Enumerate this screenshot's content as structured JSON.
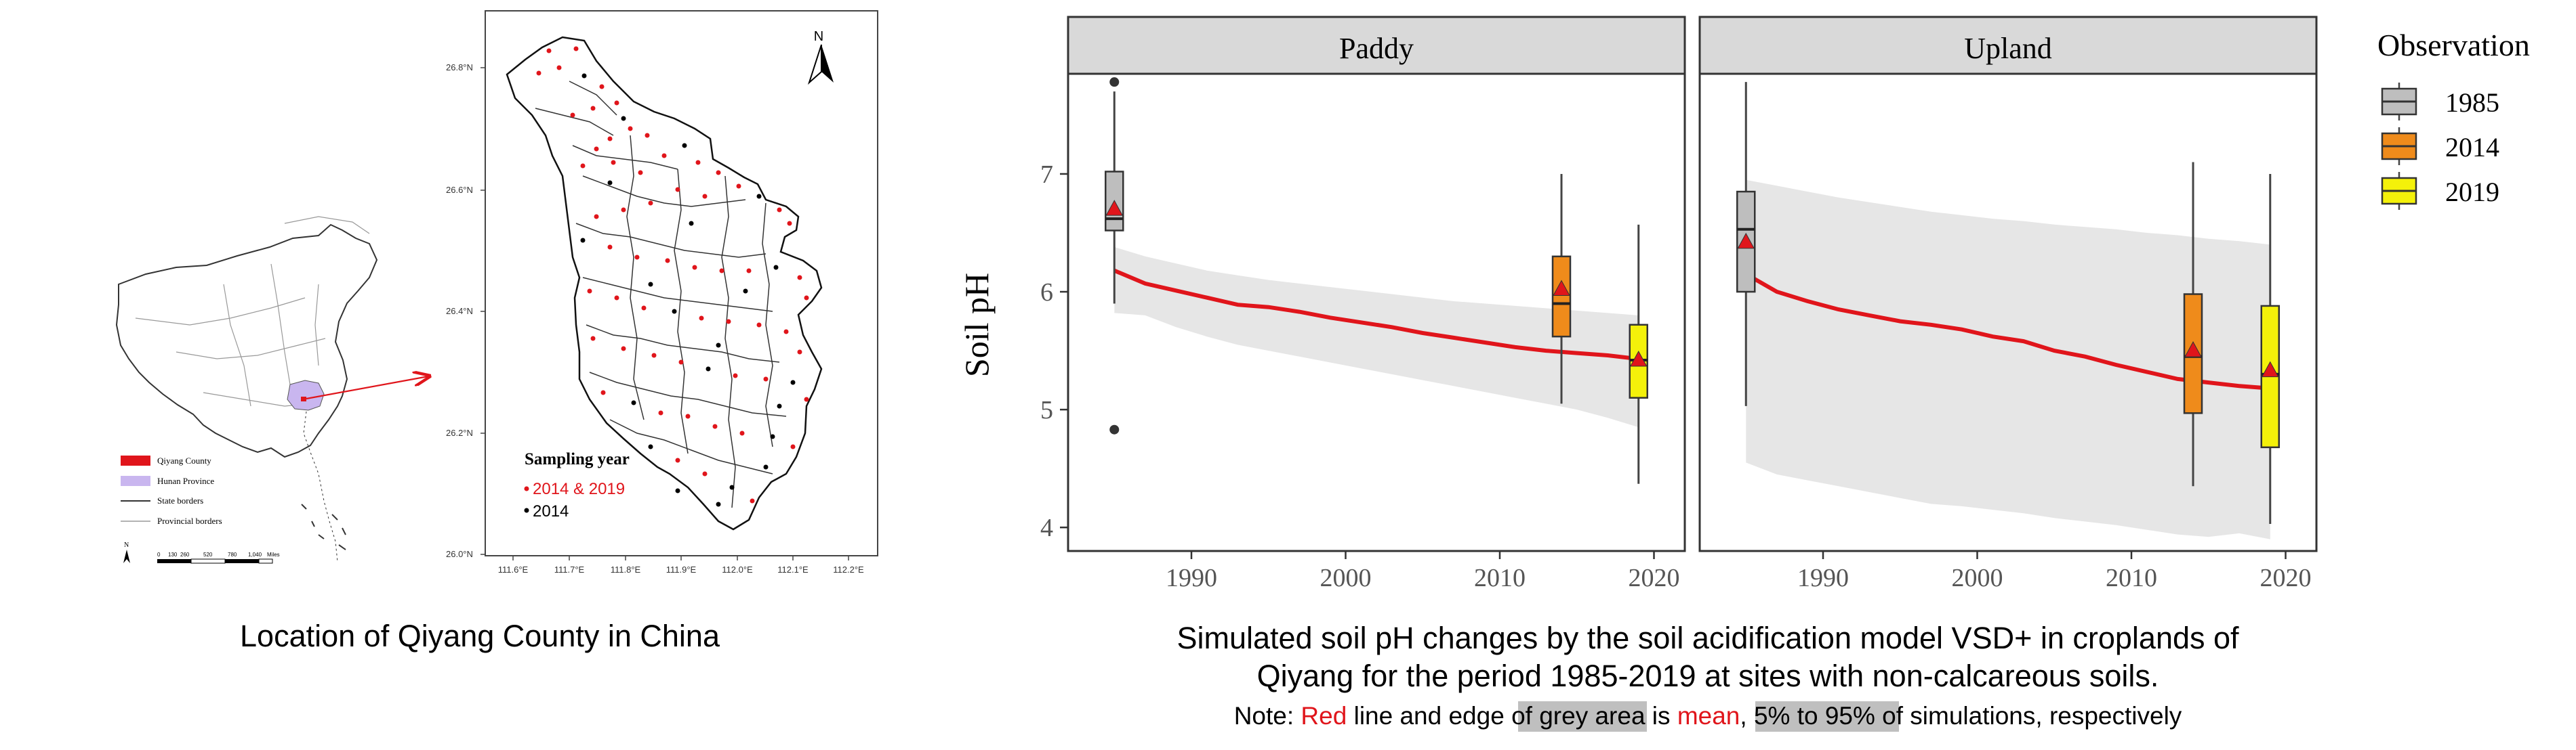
{
  "left_caption": "Location of Qiyang County in China",
  "china_legend": [
    "Qiyang County",
    "Hunan Province",
    "State borders",
    "Provincial borders"
  ],
  "scale_bar": {
    "labels": [
      "0",
      "130",
      "260",
      "520",
      "780",
      "1,040"
    ],
    "unit": "Miles"
  },
  "north_label": "N",
  "county_map": {
    "lat_ticks": [
      "26.0°N",
      "26.2°N",
      "26.4°N",
      "26.6°N",
      "26.8°N"
    ],
    "lon_ticks": [
      "111.6°E",
      "111.7°E",
      "111.8°E",
      "111.9°E",
      "112.0°E",
      "112.1°E",
      "112.2°E"
    ],
    "legend_title": "Sampling year",
    "legend_items": [
      {
        "label": "2014 & 2019",
        "color": "#e0151b"
      },
      {
        "label": "2014",
        "color": "#000000"
      }
    ]
  },
  "chart_data": {
    "type": "line",
    "ylabel": "Soil pH",
    "xlim": [
      1982,
      2022
    ],
    "ylim": [
      3.8,
      7.85
    ],
    "x_ticks": [
      1990,
      2000,
      2010,
      2020
    ],
    "y_ticks": [
      4,
      5,
      6,
      7
    ],
    "legend_title": "Observation",
    "legend": [
      {
        "label": "1985",
        "color": "#bebebe"
      },
      {
        "label": "2014",
        "color": "#ef8b1b"
      },
      {
        "label": "2019",
        "color": "#f4f10a"
      }
    ],
    "colors": {
      "mean_line": "#e0151b",
      "band": "#e6e6e6",
      "strip": "#d9d9d9",
      "mean_marker": "#e0151b"
    },
    "panels": [
      {
        "title": "Paddy",
        "mean_line": {
          "x": [
            1985,
            1987,
            1989,
            1991,
            1993,
            1995,
            1997,
            1999,
            2001,
            2003,
            2005,
            2007,
            2009,
            2011,
            2013,
            2015,
            2017,
            2019
          ],
          "y": [
            6.18,
            6.07,
            6.01,
            5.95,
            5.89,
            5.87,
            5.83,
            5.78,
            5.74,
            5.7,
            5.65,
            5.61,
            5.57,
            5.53,
            5.5,
            5.48,
            5.46,
            5.43
          ]
        },
        "band_upper": [
          6.38,
          6.3,
          6.24,
          6.18,
          6.14,
          6.1,
          6.07,
          6.04,
          6.01,
          5.98,
          5.95,
          5.92,
          5.9,
          5.88,
          5.86,
          5.84,
          5.82,
          5.8
        ],
        "band_lower": [
          5.82,
          5.8,
          5.7,
          5.62,
          5.55,
          5.5,
          5.45,
          5.4,
          5.35,
          5.3,
          5.25,
          5.2,
          5.15,
          5.1,
          5.05,
          5.0,
          4.93,
          4.85
        ],
        "boxes": [
          {
            "year": 1985,
            "group": "1985",
            "min": 5.9,
            "q1": 6.52,
            "median": 6.62,
            "q3": 7.02,
            "max": 7.7,
            "mean": 6.7,
            "outliers": [
              7.78,
              4.83
            ]
          },
          {
            "year": 2014,
            "group": "2014",
            "min": 5.05,
            "q1": 5.62,
            "median": 5.9,
            "q3": 6.3,
            "max": 7.0,
            "mean": 6.02,
            "outliers": []
          },
          {
            "year": 2019,
            "group": "2019",
            "min": 4.37,
            "q1": 5.1,
            "median": 5.42,
            "q3": 5.72,
            "max": 6.57,
            "mean": 5.42,
            "outliers": []
          }
        ]
      },
      {
        "title": "Upland",
        "mean_line": {
          "x": [
            1985,
            1987,
            1989,
            1991,
            1993,
            1995,
            1997,
            1999,
            2001,
            2003,
            2005,
            2007,
            2009,
            2011,
            2013,
            2015,
            2017,
            2019
          ],
          "y": [
            6.15,
            6.0,
            5.92,
            5.85,
            5.8,
            5.75,
            5.72,
            5.68,
            5.62,
            5.58,
            5.5,
            5.45,
            5.38,
            5.32,
            5.26,
            5.23,
            5.2,
            5.18
          ]
        },
        "band_upper": [
          6.95,
          6.9,
          6.85,
          6.8,
          6.76,
          6.72,
          6.68,
          6.65,
          6.62,
          6.6,
          6.57,
          6.55,
          6.53,
          6.5,
          6.48,
          6.45,
          6.43,
          6.4
        ],
        "band_lower": [
          4.55,
          4.45,
          4.4,
          4.35,
          4.3,
          4.25,
          4.2,
          4.18,
          4.15,
          4.12,
          4.08,
          4.05,
          4.02,
          3.98,
          3.94,
          3.92,
          3.95,
          3.9
        ],
        "boxes": [
          {
            "year": 1985,
            "group": "1985",
            "min": 5.03,
            "q1": 6.0,
            "median": 6.53,
            "q3": 6.85,
            "max": 7.78,
            "mean": 6.42,
            "outliers": []
          },
          {
            "year": 2014,
            "group": "2014",
            "min": 4.35,
            "q1": 4.97,
            "median": 5.45,
            "q3": 5.98,
            "max": 7.1,
            "mean": 5.5,
            "outliers": []
          },
          {
            "year": 2019,
            "group": "2019",
            "min": 4.03,
            "q1": 4.68,
            "median": 5.3,
            "q3": 5.88,
            "max": 7.0,
            "mean": 5.33,
            "outliers": []
          }
        ]
      }
    ]
  },
  "right_caption": {
    "line1": "Simulated soil pH changes by the soil acidification model VSD+ in croplands of",
    "line2": "Qiyang for the period 1985-2019 at sites with non-calcareous soils.",
    "note_prefix": "Note: ",
    "note_red": "Red",
    "note_mid1": " line and edge of ",
    "note_grey_area": "grey area",
    "note_mid2": " is ",
    "note_mean": "mean",
    "note_comma": ", ",
    "note_pct": "5% to 95%",
    "note_end": " of simulations, respectively"
  }
}
